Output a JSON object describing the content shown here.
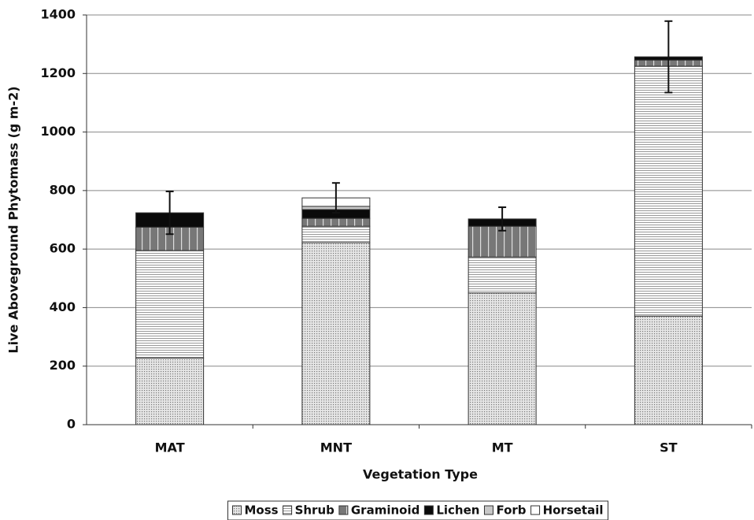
{
  "chart_data": {
    "type": "stacked_bar",
    "xlabel": "Vegetation Type",
    "ylabel": "Live Aboveground Phytomass (g m-2)",
    "categories": [
      "MAT",
      "MNT",
      "MT",
      "ST"
    ],
    "series": [
      {
        "name": "Moss",
        "color": "#bdbdbd",
        "pattern": "dots",
        "values": [
          228,
          622,
          450,
          371
        ]
      },
      {
        "name": "Shrub",
        "color": "#ffffff",
        "pattern": "hlines",
        "values": [
          367,
          56,
          123,
          854
        ]
      },
      {
        "name": "Graminoid",
        "color": "#777777",
        "pattern": "vlines",
        "values": [
          80,
          27,
          105,
          21
        ]
      },
      {
        "name": "Lichen",
        "color": "#0a0a0a",
        "pattern": "none",
        "values": [
          49,
          30,
          25,
          11
        ]
      },
      {
        "name": "Forb",
        "color": "#c8c8c8",
        "pattern": "none",
        "values": [
          0,
          11,
          0,
          0
        ]
      },
      {
        "name": "Horsetail",
        "color": "#ffffff",
        "pattern": "none",
        "values": [
          0,
          29,
          0,
          0
        ]
      }
    ],
    "errors": [
      73,
      51,
      40,
      122
    ],
    "ylim": [
      0,
      1400
    ],
    "yticks": [
      0,
      200,
      400,
      600,
      800,
      1000,
      1200,
      1400
    ],
    "grid": true,
    "legend": "bottom"
  }
}
